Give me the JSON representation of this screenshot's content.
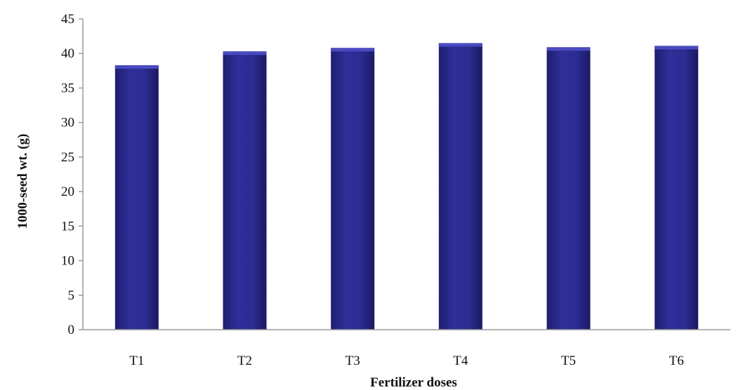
{
  "chart_data": {
    "type": "bar",
    "title": "",
    "xlabel": "Fertilizer doses",
    "ylabel": "1000-seed wt. (g)",
    "categories": [
      "T1",
      "T2",
      "T3",
      "T4",
      "T5",
      "T6"
    ],
    "values": [
      38.3,
      40.3,
      40.8,
      41.5,
      40.9,
      41.1
    ],
    "ylim": [
      0,
      45
    ],
    "yticks": [
      0,
      5,
      10,
      15,
      20,
      25,
      30,
      35,
      40,
      45
    ],
    "grid": false,
    "legend": "none",
    "bar_color": "#2b2b8f",
    "bar_highlight": "#4a4ac0"
  }
}
